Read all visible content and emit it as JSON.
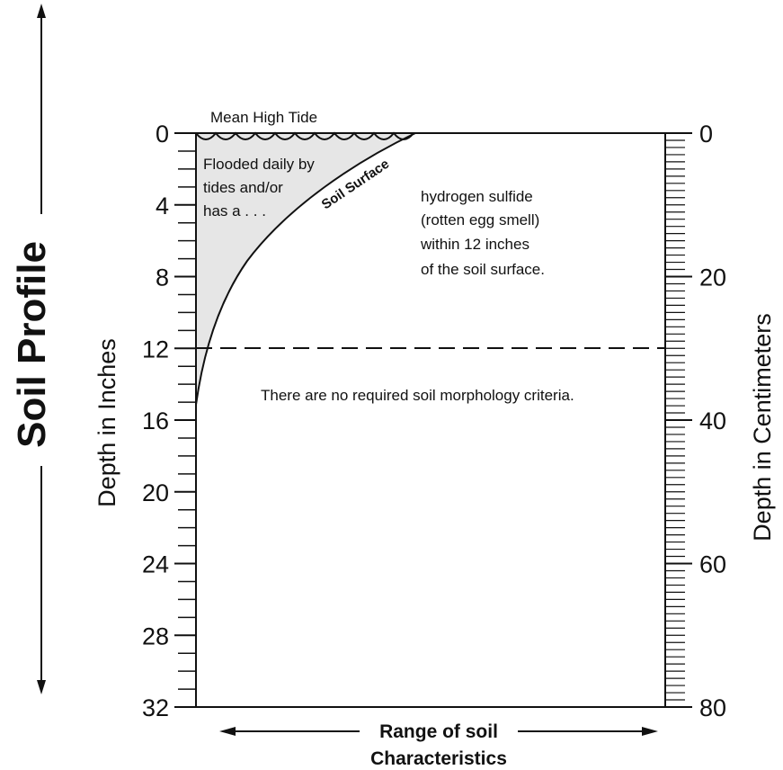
{
  "title": "Soil Profile",
  "axes": {
    "left_label": "Depth in Inches",
    "right_label": "Depth in Centimeters",
    "left_range": [
      0,
      32
    ],
    "right_range": [
      0,
      80
    ],
    "left_major_ticks": [
      "0",
      "4",
      "8",
      "12",
      "16",
      "20",
      "24",
      "28",
      "32"
    ],
    "right_major_ticks": [
      "0",
      "20",
      "40",
      "60",
      "80"
    ]
  },
  "annotations": {
    "mean_high_tide": "Mean High Tide",
    "flooded_line1": "Flooded daily by",
    "flooded_line2": "tides and/or",
    "flooded_line3": "has a . . .",
    "soil_surface": "Soil Surface",
    "sulfide_line1": "hydrogen sulfide",
    "sulfide_line2": "(rotten egg smell)",
    "sulfide_line3": "within 12 inches",
    "sulfide_line4": "of the soil surface.",
    "criteria": "There are no required soil morphology criteria.",
    "dashed_line_depth_in": 12
  },
  "bottom": {
    "range_line1": "Range of soil",
    "range_line2": "Characteristics"
  }
}
